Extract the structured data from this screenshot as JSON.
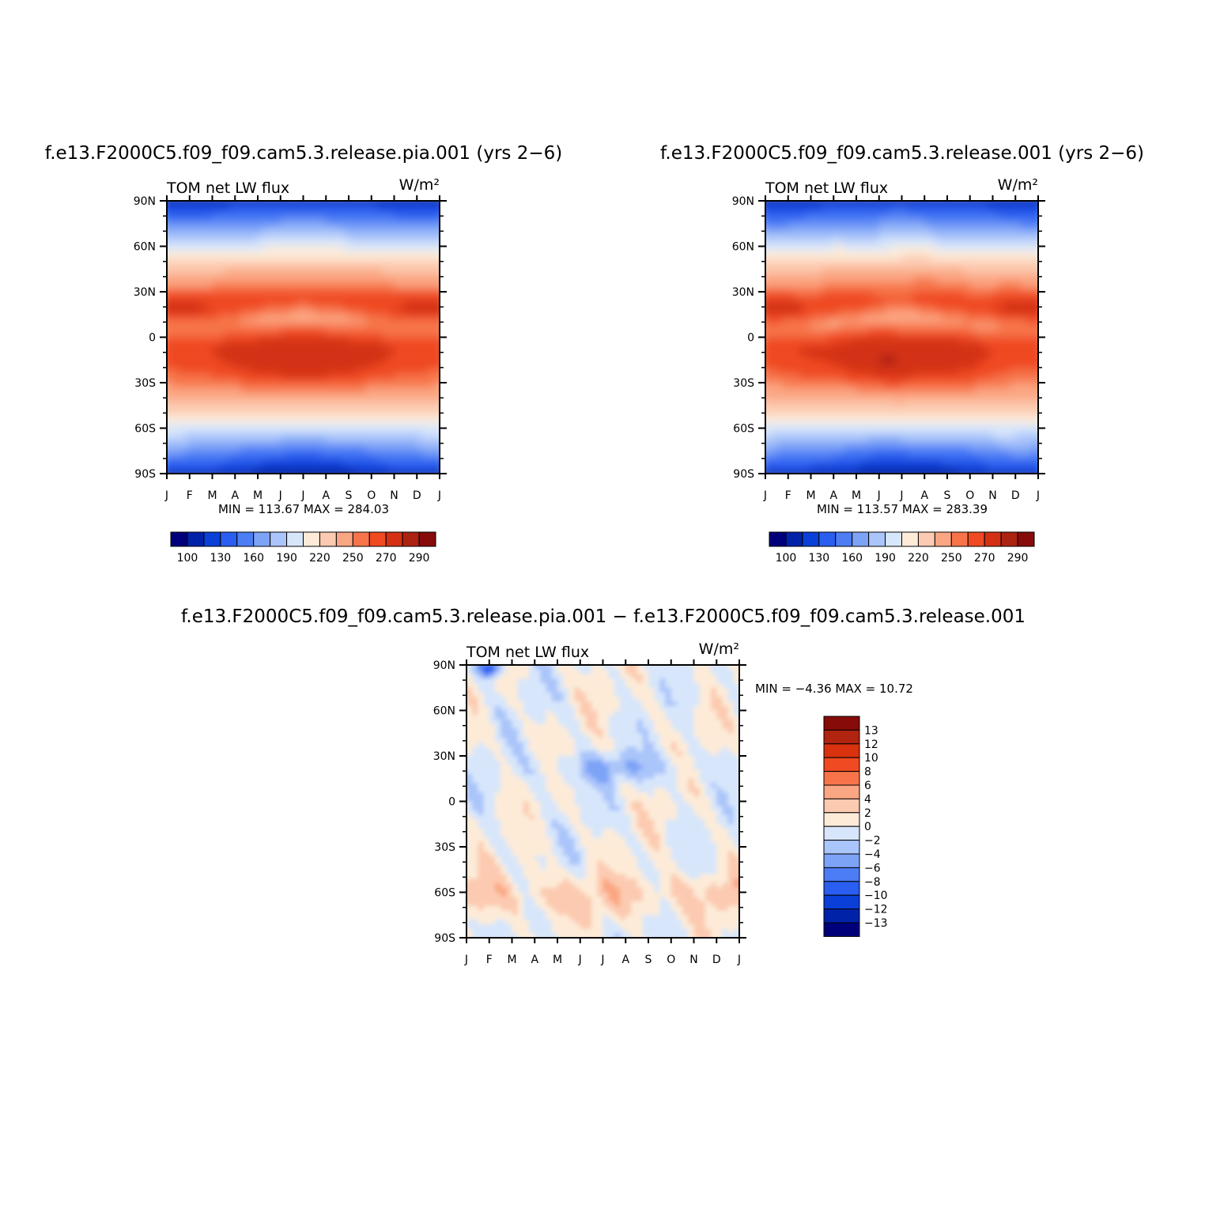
{
  "chart_data": [
    {
      "type": "heatmap",
      "title": "f.e13.F2000C5.f09_f09.cam5.3.release.pia.001 (yrs 2−6)",
      "left_string": "TOM net LW flux",
      "units": "W/m²",
      "x_ticks": [
        "J",
        "F",
        "M",
        "A",
        "M",
        "J",
        "J",
        "A",
        "S",
        "O",
        "N",
        "D",
        "J"
      ],
      "y_ticks": [
        "90N",
        "60N",
        "30N",
        "0",
        "30S",
        "60S",
        "90S"
      ],
      "xlim": [
        "Jan",
        "Jan"
      ],
      "ylim": [
        -90,
        90
      ],
      "min_max_label": "MIN = 113.67 MAX = 284.03",
      "colorbar_labels": [
        "100",
        "130",
        "160",
        "190",
        "220",
        "250",
        "270",
        "290"
      ],
      "colorbar_orientation": "horizontal",
      "field": "climatological"
    },
    {
      "type": "heatmap",
      "title": "f.e13.F2000C5.f09_f09.cam5.3.release.001 (yrs 2−6)",
      "left_string": "TOM net LW flux",
      "units": "W/m²",
      "x_ticks": [
        "J",
        "F",
        "M",
        "A",
        "M",
        "J",
        "J",
        "A",
        "S",
        "O",
        "N",
        "D",
        "J"
      ],
      "y_ticks": [
        "90N",
        "60N",
        "30N",
        "0",
        "30S",
        "60S",
        "90S"
      ],
      "xlim": [
        "Jan",
        "Jan"
      ],
      "ylim": [
        -90,
        90
      ],
      "min_max_label": "MIN = 113.57 MAX = 283.39",
      "colorbar_labels": [
        "100",
        "130",
        "160",
        "190",
        "220",
        "250",
        "270",
        "290"
      ],
      "colorbar_orientation": "horizontal",
      "field": "climatological"
    },
    {
      "type": "heatmap",
      "title": "f.e13.F2000C5.f09_f09.cam5.3.release.pia.001 − f.e13.F2000C5.f09_f09.cam5.3.release.001",
      "left_string": "TOM net LW flux",
      "units": "W/m²",
      "x_ticks": [
        "J",
        "F",
        "M",
        "A",
        "M",
        "J",
        "J",
        "A",
        "S",
        "O",
        "N",
        "D",
        "J"
      ],
      "y_ticks": [
        "90N",
        "60N",
        "30N",
        "0",
        "30S",
        "60S",
        "90S"
      ],
      "xlim": [
        "Jan",
        "Jan"
      ],
      "ylim": [
        -90,
        90
      ],
      "min_max_label": "MIN =   −4.36 MAX =   10.72",
      "colorbar_labels": [
        "13",
        "12",
        "10",
        "8",
        "6",
        "4",
        "2",
        "0",
        "−2",
        "−4",
        "−6",
        "−8",
        "−10",
        "−12",
        "−13"
      ],
      "colorbar_orientation": "vertical",
      "field": "difference"
    }
  ],
  "colors": {
    "field_palette": [
      "#00007a",
      "#0022a8",
      "#0a3fd8",
      "#2a5ef0",
      "#4c7df5",
      "#7da3f7",
      "#aac5fa",
      "#d7e6fb",
      "#fdebd8",
      "#fccab0",
      "#fba682",
      "#f7744a",
      "#ef4a21",
      "#d43114",
      "#ad2312",
      "#860b09"
    ],
    "diff_palette": [
      "#860b09",
      "#b02410",
      "#d9320f",
      "#ef4a21",
      "#f7744a",
      "#fba682",
      "#fccab0",
      "#fdebd8",
      "#d7e6fb",
      "#aac5fa",
      "#7da3f7",
      "#4c7df5",
      "#2a5ef0",
      "#0a3fd8",
      "#0022a8",
      "#00007a"
    ]
  }
}
